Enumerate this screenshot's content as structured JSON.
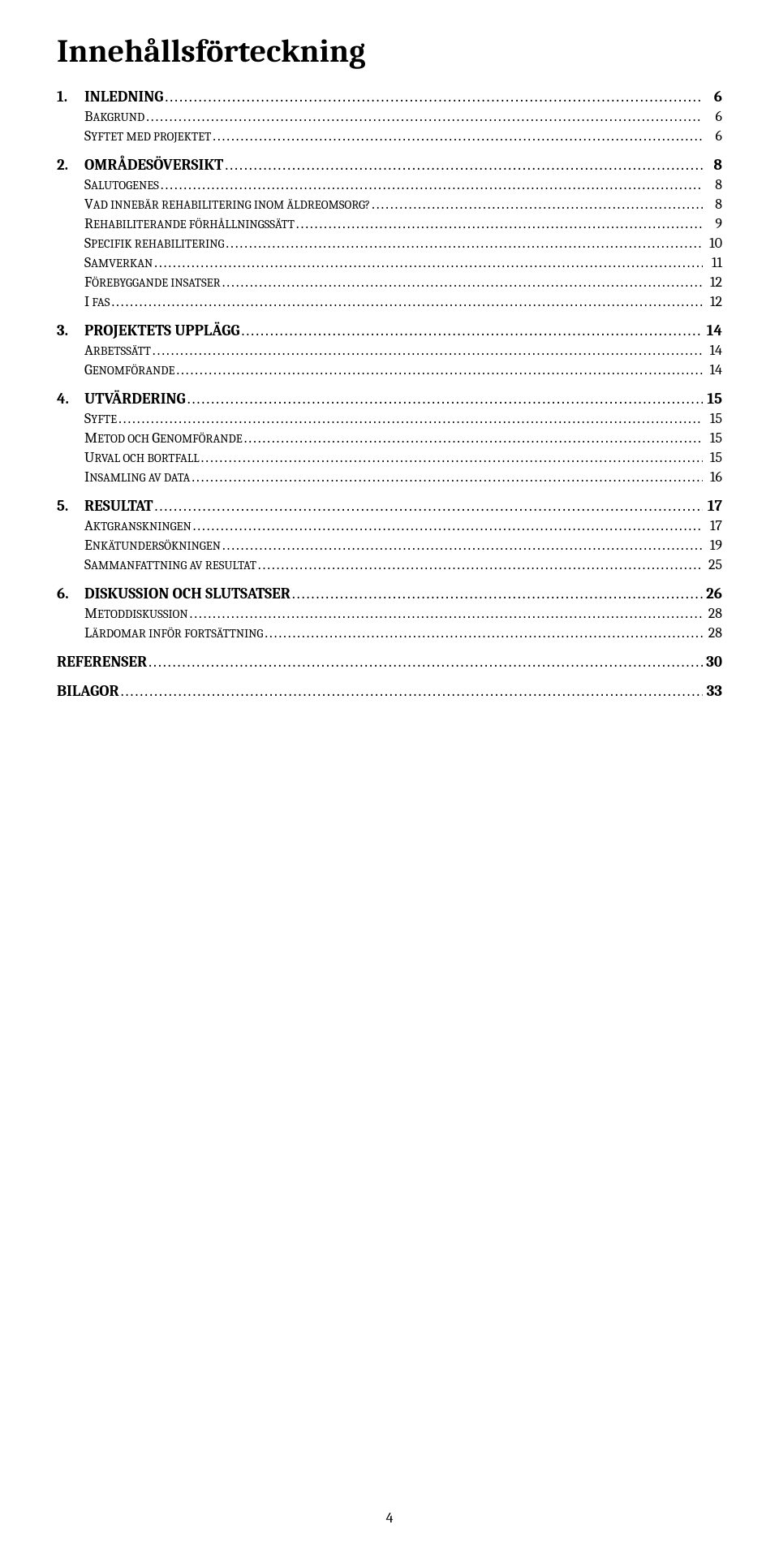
{
  "title": "Innehållsförteckning",
  "page_number": "4",
  "colors": {
    "text": "#000000",
    "background": "#ffffff"
  },
  "entries": [
    {
      "level": 1,
      "num": "1.",
      "label_first": "I",
      "label_rest": "NLEDNING",
      "plain": "INLEDNING",
      "page": "6"
    },
    {
      "level": 2,
      "label_first": "B",
      "label_rest": "AKGRUND",
      "page": "6"
    },
    {
      "level": 2,
      "label_first": "S",
      "label_rest": "YFTET MED PROJEKTET",
      "page": "6"
    },
    {
      "level": 1,
      "num": "2.",
      "label_first": "O",
      "label_rest": "MRÅDESÖVERSIKT",
      "plain": "OMRÅDESÖVERSIKT",
      "page": "8"
    },
    {
      "level": 2,
      "label_first": "S",
      "label_rest": "ALUTOGENES",
      "page": "8"
    },
    {
      "level": 2,
      "label_first": "V",
      "label_rest": "AD INNEBÄR REHABILITERING INOM ÄLDREOMSORG?",
      "page": "8"
    },
    {
      "level": 2,
      "label_first": "R",
      "label_rest": "EHABILITERANDE FÖRHÅLLNINGSSÄTT",
      "page": "9"
    },
    {
      "level": 2,
      "label_first": "S",
      "label_rest": "PECIFIK REHABILITERING",
      "page": "10"
    },
    {
      "level": 2,
      "label_first": "S",
      "label_rest": "AMVERKAN",
      "page": "11"
    },
    {
      "level": 2,
      "label_first": "F",
      "label_rest": "ÖREBYGGANDE INSATSER",
      "page": "12"
    },
    {
      "level": 2,
      "label_first": "I",
      "label_rest": " FAS",
      "page": "12"
    },
    {
      "level": 1,
      "num": "3.",
      "label_first": "P",
      "label_rest": "ROJEKTETS UPPLÄGG",
      "plain": "PROJEKTETS UPPLÄGG",
      "page": "14"
    },
    {
      "level": 2,
      "label_first": "A",
      "label_rest": "RBETSSÄTT",
      "page": "14"
    },
    {
      "level": 2,
      "label_first": "G",
      "label_rest": "ENOMFÖRANDE",
      "page": "14"
    },
    {
      "level": 1,
      "num": "4.",
      "label_first": "U",
      "label_rest": "TVÄRDERING",
      "plain": "UTVÄRDERING",
      "page": "15"
    },
    {
      "level": 2,
      "label_first": "S",
      "label_rest": "YFTE",
      "page": "15"
    },
    {
      "level": 2,
      "label_first": "M",
      "label_rest": "ETOD OCH ",
      "label_first2": "G",
      "label_rest2": "ENOMFÖRANDE",
      "page": "15"
    },
    {
      "level": 2,
      "label_first": "U",
      "label_rest": "RVAL OCH BORTFALL",
      "page": "15"
    },
    {
      "level": 2,
      "label_first": "I",
      "label_rest": "NSAMLING AV DATA",
      "page": "16"
    },
    {
      "level": 1,
      "num": "5.",
      "label_first": "R",
      "label_rest": "ESULTAT",
      "plain": "RESULTAT",
      "page": "17"
    },
    {
      "level": 2,
      "label_first": "A",
      "label_rest": "KTGRANSKNINGEN",
      "page": "17"
    },
    {
      "level": 2,
      "label_first": "E",
      "label_rest": "NKÄTUNDERSÖKNINGEN",
      "page": "19"
    },
    {
      "level": 2,
      "label_first": "S",
      "label_rest": "AMMANFATTNING AV RESULTAT",
      "page": "25"
    },
    {
      "level": 1,
      "num": "6.",
      "label_first": "D",
      "label_rest": "ISKUSSION OCH SLUTSATSER",
      "plain": "DISKUSSION OCH SLUTSATSER",
      "page": "26"
    },
    {
      "level": 2,
      "label_first": "M",
      "label_rest": "ETODDISKUSSION",
      "page": "28"
    },
    {
      "level": 2,
      "label_first": "L",
      "label_rest": "ÄRDOMAR INFÖR FORTSÄTTNING",
      "page": "28"
    },
    {
      "level": 0,
      "plain": "REFERENSER",
      "page": "30"
    },
    {
      "level": 0,
      "plain": "BILAGOR",
      "page": "33"
    }
  ]
}
